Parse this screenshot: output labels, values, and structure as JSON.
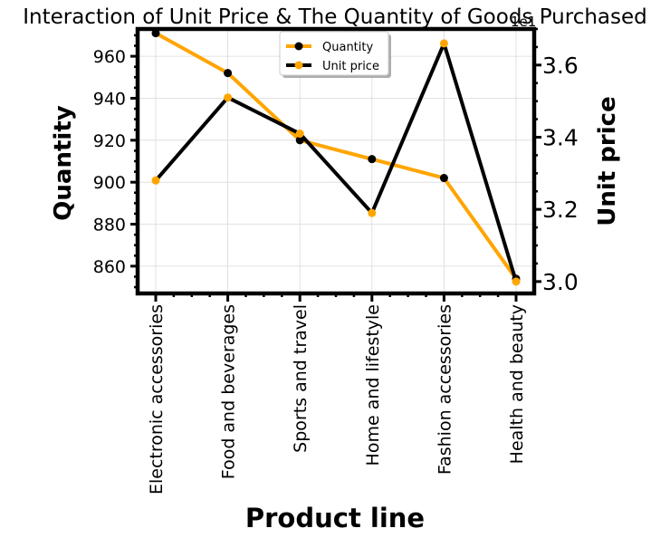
{
  "chart_data": {
    "type": "line",
    "title": "Interaction of Unit Price & The Quantity of Goods Purchased",
    "xlabel": "Product line",
    "ylabel_left": "Quantity",
    "ylabel_right": "Unit price",
    "right_axis_offset_label": "1e1",
    "categories": [
      "Electronic accessories",
      "Food and beverages",
      "Sports and travel",
      "Home and lifestyle",
      "Fashion accessories",
      "Health and beauty"
    ],
    "series": [
      {
        "name": "Quantity",
        "axis": "left",
        "values": [
          971,
          952,
          920,
          911,
          902,
          854
        ],
        "color": "#FFA500"
      },
      {
        "name": "Unit price",
        "axis": "right",
        "values": [
          3.28,
          3.51,
          3.41,
          3.19,
          3.66,
          3.0
        ],
        "color": "#000000"
      }
    ],
    "ylim_left": [
      847,
      973
    ],
    "ylim_right": [
      2.967,
      3.7
    ],
    "yticks_left": [
      860,
      880,
      900,
      920,
      940,
      960
    ],
    "yticks_right": [
      3.0,
      3.2,
      3.4,
      3.6
    ],
    "grid": true,
    "legend": {
      "placement": "top-center",
      "entries": [
        {
          "label": "Quantity",
          "line_color": "#FFA500",
          "marker_color": "#000000"
        },
        {
          "label": "Unit price",
          "line_color": "#000000",
          "marker_color": "#FFA500"
        }
      ]
    }
  }
}
